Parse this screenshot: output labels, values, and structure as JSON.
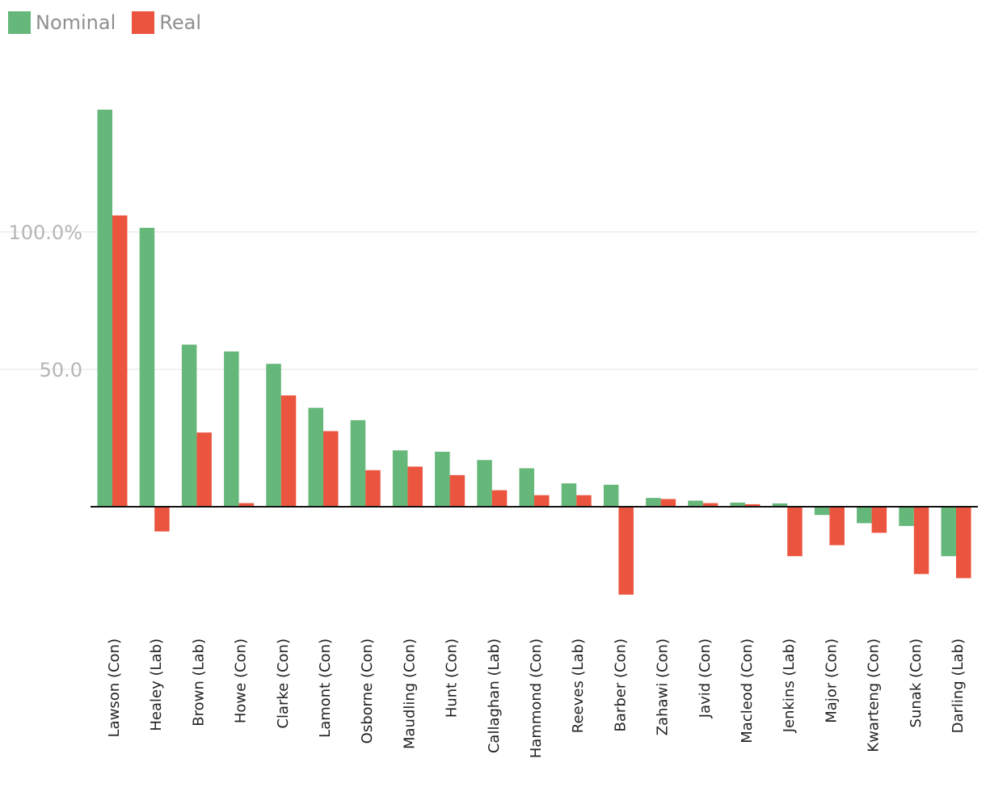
{
  "chart_data": {
    "type": "bar",
    "title": "",
    "xlabel": "",
    "ylabel": "",
    "ylim": [
      -45,
      145
    ],
    "grid": true,
    "legend_position": "top-left",
    "ytick_values": [
      100,
      50
    ],
    "ytick_labels": [
      "100.0%",
      "50.0"
    ],
    "categories": [
      "Lawson (Con)",
      "Healey (Lab)",
      "Brown (Lab)",
      "Howe (Con)",
      "Clarke (Con)",
      "Lamont (Con)",
      "Osborne (Con)",
      "Maudling (Con)",
      "Hunt (Con)",
      "Callaghan (Lab)",
      "Hammond (Con)",
      "Reeves (Lab)",
      "Barber (Con)",
      "Zahawi (Con)",
      "Javid (Con)",
      "Macleod (Con)",
      "Jenkins (Lab)",
      "Major (Con)",
      "Kwarteng (Con)",
      "Sunak (Con)",
      "Darling (Lab)"
    ],
    "series": [
      {
        "name": "Nominal",
        "color": "#66b77a",
        "values": [
          144.5,
          101.5,
          59,
          56.5,
          52,
          36,
          31.5,
          20.5,
          20,
          17,
          14,
          8.5,
          8,
          3.2,
          2.2,
          1.5,
          1.2,
          -3,
          -6,
          -7,
          -18
        ]
      },
      {
        "name": "Real",
        "color": "#eb543e",
        "values": [
          106,
          -9,
          27,
          1.3,
          40.5,
          27.5,
          13.3,
          14.6,
          11.5,
          6,
          4.2,
          4.2,
          -32,
          2.8,
          1.3,
          0.9,
          -18,
          -14,
          -9.5,
          -24.5,
          -26
        ]
      }
    ]
  }
}
